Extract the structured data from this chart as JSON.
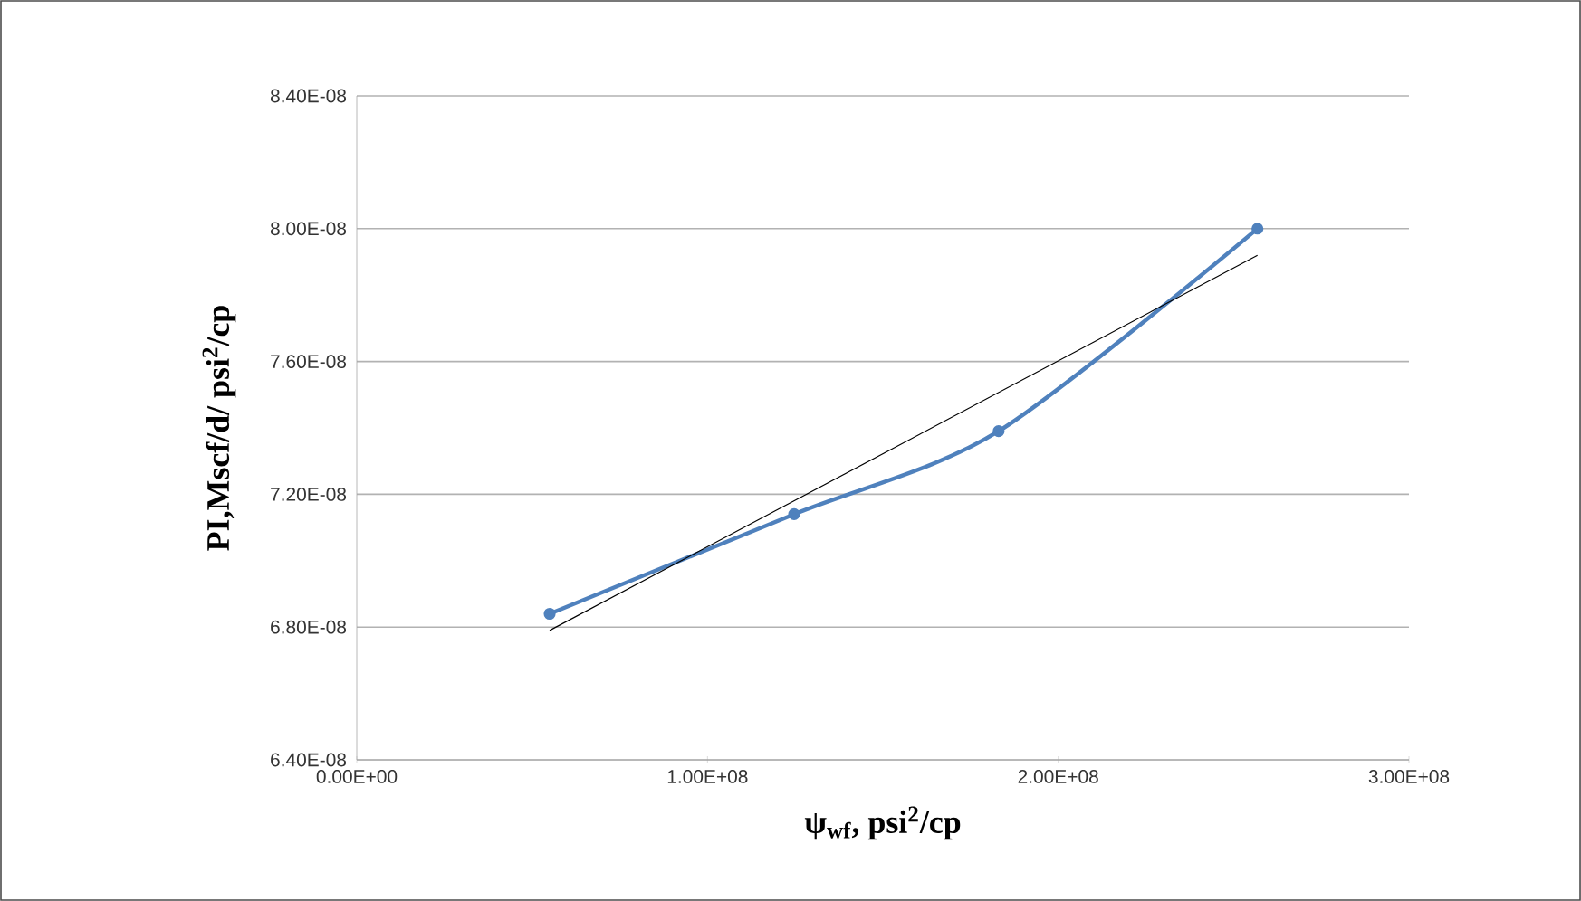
{
  "chart_data": {
    "type": "line",
    "xlabel": "ψ$_{wf}$, psi$^{2}$/cp",
    "ylabel": "PI,Mscf/d/ psi$^{2}$/cp",
    "series": [
      {
        "color": "#4f81bd",
        "marker": "circle",
        "x": [
          55000000.0,
          124700000.0,
          183000000.0,
          256800000.0
        ],
        "values": [
          6.84e-08,
          7.14e-08,
          7.39e-08,
          8e-08
        ]
      },
      {
        "type": "line",
        "color": "#000000",
        "marker": "none",
        "x": [
          55000000.0,
          256800000.0
        ],
        "values": [
          6.79e-08,
          7.92e-08
        ]
      }
    ],
    "xlim": [
      0,
      300000000.0
    ],
    "ylim": [
      6.4e-08,
      8.4e-08
    ],
    "xticks": [
      {
        "value": 0,
        "label": "0.00E+00"
      },
      {
        "value": 100000000.0,
        "label": "1.00E+08"
      },
      {
        "value": 200000000.0,
        "label": "2.00E+08"
      },
      {
        "value": 300000000.0,
        "label": "3.00E+08"
      }
    ],
    "yticks": [
      {
        "value": 6.4e-08,
        "label": "6.40E-08"
      },
      {
        "value": 6.8e-08,
        "label": "6.80E-08"
      },
      {
        "value": 7.2e-08,
        "label": "7.20E-08"
      },
      {
        "value": 7.6e-08,
        "label": "7.60E-08"
      },
      {
        "value": 8e-08,
        "label": "8.00E-08"
      },
      {
        "value": 8.4e-08,
        "label": "8.40E-08"
      }
    ],
    "grid": "y"
  }
}
